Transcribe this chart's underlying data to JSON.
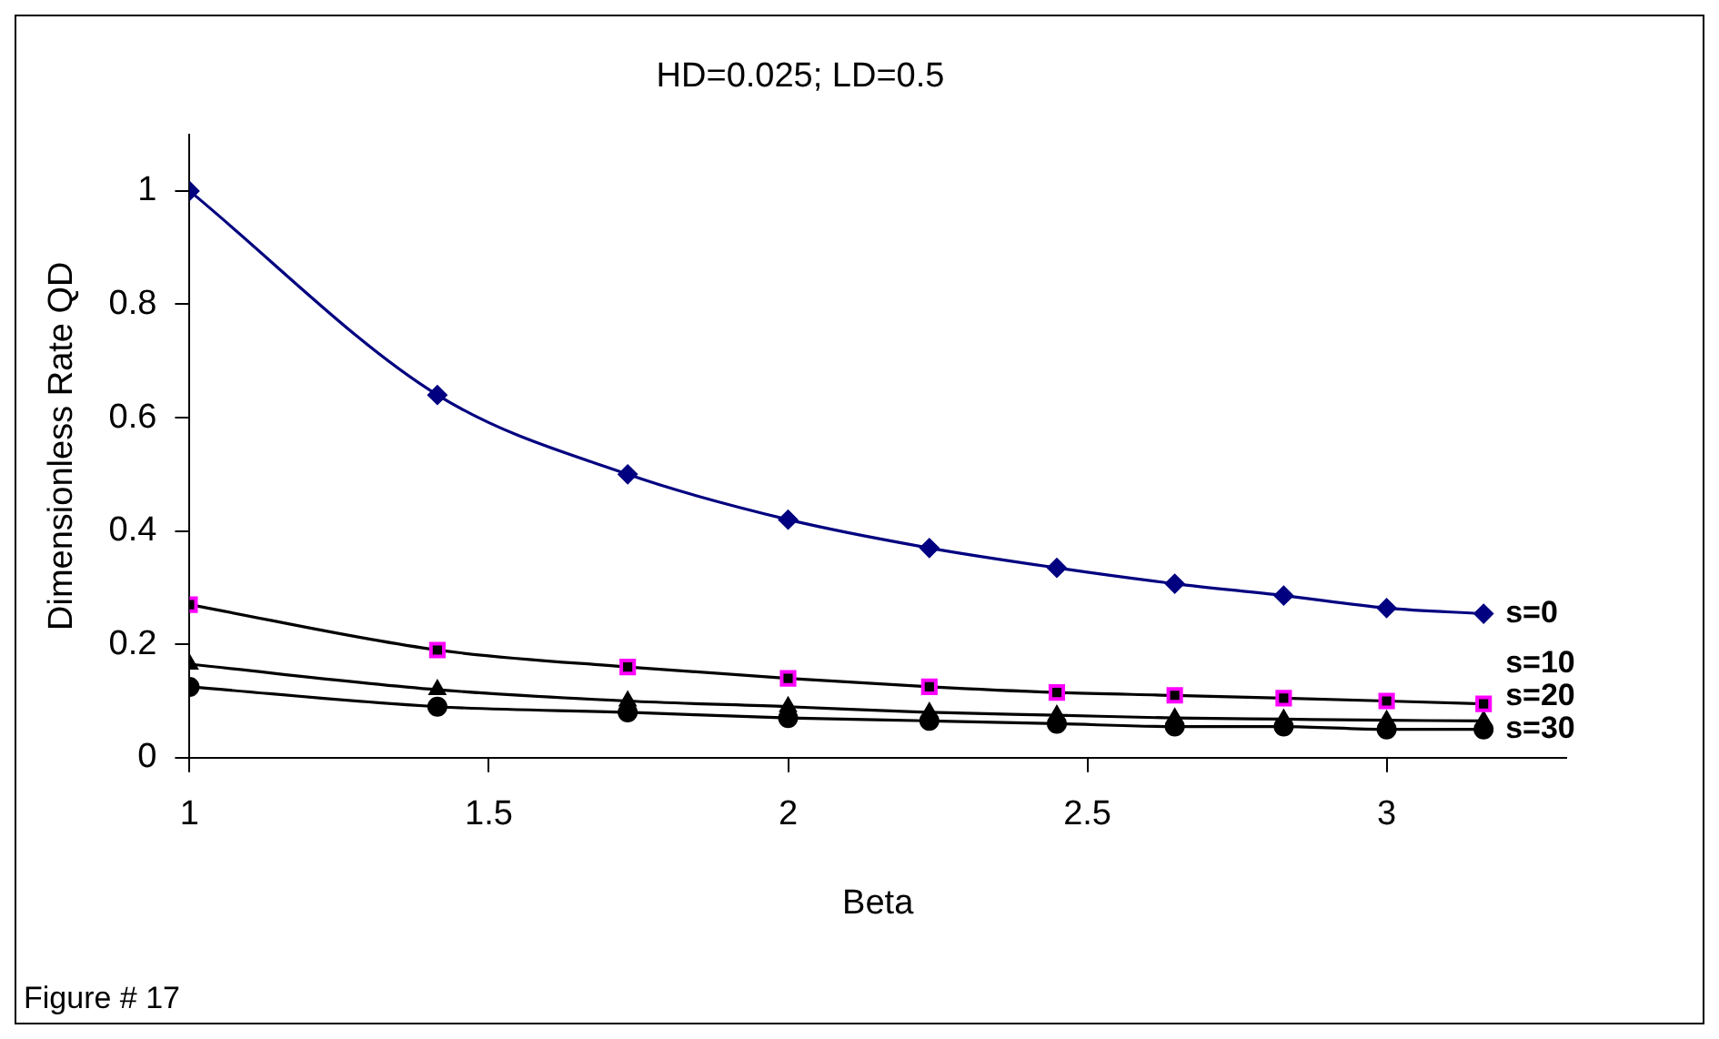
{
  "chart_data": {
    "type": "line",
    "title": "HD=0.025; LD=0.5",
    "xlabel": "Beta",
    "ylabel": "Dimensionless Rate QD",
    "x": [
      1,
      1.414,
      1.732,
      2,
      2.236,
      2.449,
      2.646,
      2.828,
      3,
      3.162
    ],
    "series": [
      {
        "name": "s=0",
        "color": "#000080",
        "marker": "diamond",
        "values": [
          1,
          0.64,
          0.5,
          0.42,
          0.37,
          0.335,
          0.307,
          0.286,
          0.264,
          0.254
        ]
      },
      {
        "name": "s=10",
        "color": "#000000",
        "marker": "square",
        "values": [
          0.27,
          0.19,
          0.16,
          0.14,
          0.125,
          0.115,
          0.11,
          0.105,
          0.1,
          0.095
        ]
      },
      {
        "name": "s=20",
        "color": "#000000",
        "marker": "triangle",
        "values": [
          0.165,
          0.12,
          0.1,
          0.09,
          0.08,
          0.075,
          0.07,
          0.068,
          0.066,
          0.065
        ]
      },
      {
        "name": "s=30",
        "color": "#000000",
        "marker": "circle",
        "values": [
          0.125,
          0.09,
          0.08,
          0.07,
          0.065,
          0.06,
          0.055,
          0.055,
          0.05,
          0.05
        ]
      }
    ],
    "xlim": [
      1,
      3.3
    ],
    "xticks": [
      1,
      1.5,
      2,
      2.5,
      3
    ],
    "ylim": [
      0,
      1.1
    ],
    "yticks": [
      0,
      0.2,
      0.4,
      0.6,
      0.8,
      1
    ],
    "grid": false,
    "legend": false,
    "annotations": [
      "Figure # 17"
    ]
  }
}
